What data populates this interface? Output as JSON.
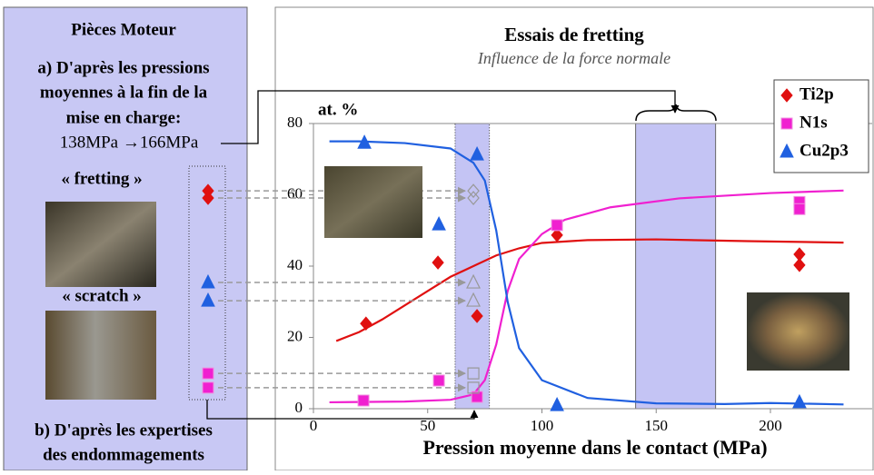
{
  "left_panel": {
    "title": "Pièces Moteur",
    "lines_a": [
      "a) D'après les pressions",
      "moyennes à la fin de la",
      "mise en charge:"
    ],
    "pressure_range": "138MPa →166MPa",
    "label_fretting": "« fretting »",
    "label_scratch": "« scratch »",
    "lines_b": [
      "b) D'après les expertises",
      "des endommagements"
    ]
  },
  "chart_data": {
    "type": "scatter",
    "title": "Essais de fretting",
    "subtitle": "Influence de la force normale",
    "y_label": "at. %",
    "x_label": "Pression moyenne dans le contact (MPa)",
    "xlim": [
      0,
      240
    ],
    "ylim": [
      0,
      80
    ],
    "xticks": [
      0,
      50,
      100,
      150,
      200
    ],
    "yticks": [
      0,
      20,
      40,
      60,
      80
    ],
    "legend": "top-right",
    "highlight_ranges": [
      [
        62,
        77
      ],
      [
        141,
        176
      ]
    ],
    "highlight_color": "#c4c4f4",
    "engine_pressure": 70,
    "series": [
      {
        "name": "Ti2p",
        "color": "#e01010",
        "marker": "diamond",
        "x": [
          23,
          54.5,
          71.6,
          106.6,
          212.7,
          212.7
        ],
        "values": [
          23.9,
          41,
          26,
          48.7,
          43.3,
          40.3
        ],
        "fit_x": [
          10,
          20,
          30,
          40,
          50,
          60,
          70,
          80,
          90,
          100,
          120,
          150,
          190,
          232
        ],
        "fit_values": [
          19,
          21.5,
          25,
          29,
          33,
          37,
          40,
          43,
          45,
          46.5,
          47.3,
          47.5,
          47,
          46.6
        ],
        "engine_values": [
          61.1,
          59.1
        ]
      },
      {
        "name": "N1s",
        "color": "#f020d0",
        "marker": "square",
        "x": [
          21.9,
          54.9,
          71.6,
          106.6,
          212.7,
          212.7
        ],
        "values": [
          2.3,
          7.9,
          3.3,
          51.5,
          58,
          56
        ],
        "fit_x": [
          7,
          40,
          60,
          70,
          75,
          80,
          85,
          90,
          100,
          110,
          130,
          160,
          200,
          232
        ],
        "fit_values": [
          1.8,
          2,
          2.5,
          4,
          8,
          18,
          33,
          42,
          49,
          53,
          56.5,
          59,
          60.5,
          61.2
        ],
        "engine_values": [
          9.9,
          5.9
        ]
      },
      {
        "name": "Cu2p3",
        "color": "#2060e0",
        "marker": "triangle",
        "x": [
          22.3,
          54.9,
          71.6,
          106.6,
          212.7
        ],
        "values": [
          74.6,
          51.7,
          71.3,
          1,
          1.8
        ],
        "fit_x": [
          7,
          20,
          40,
          60,
          70,
          75,
          80,
          85,
          90,
          100,
          120,
          150,
          180,
          200,
          232
        ],
        "fit_values": [
          75,
          75,
          74.5,
          73,
          69,
          64,
          50,
          30,
          17,
          8,
          3,
          1.5,
          1.3,
          1.6,
          1.2
        ],
        "engine_values": [
          35.4,
          30.3
        ]
      }
    ]
  }
}
